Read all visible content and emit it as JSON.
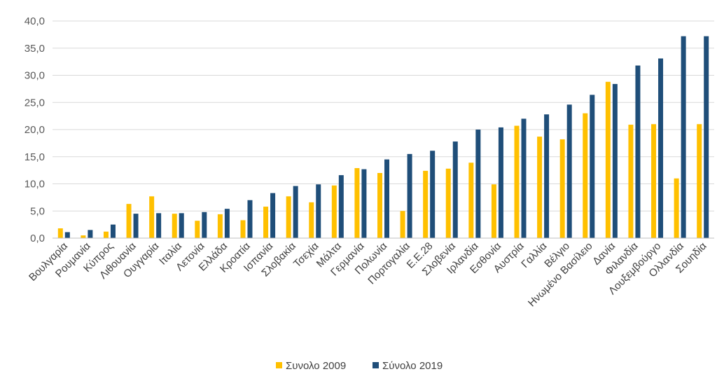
{
  "colors": {
    "series2009": "#FFC000",
    "series2019": "#1F4E79",
    "grid": "#D9D9D9",
    "axis": "#BFBFBF"
  },
  "chart_data": {
    "type": "bar",
    "title": "",
    "xlabel": "",
    "ylabel": "",
    "ylim": [
      0,
      40
    ],
    "yticks": [
      "0,0",
      "5,0",
      "10,0",
      "15,0",
      "20,0",
      "25,0",
      "30,0",
      "35,0",
      "40,0"
    ],
    "grid": true,
    "legend_position": "bottom",
    "categories": [
      "Βουλγαρία",
      "Ρουμανία",
      "Κύπρος",
      "Λιθουανία",
      "Ουγγαρία",
      "Ιταλία",
      "Λετονία",
      "Ελλάδα",
      "Κροατία",
      "Ισπανία",
      "Σλοβακία",
      "Τσεχία",
      "Μάλτα",
      "Γερμανία",
      "Πολωνία",
      "Πορτογαλία",
      "Ε.Ε.28",
      "Σλοβενία",
      "Ιρλανδία",
      "Εσθονία",
      "Αυστρία",
      "Γαλλία",
      "Βέλγιο",
      "Ηνωμένο Βασίλειο",
      "Δανία",
      "Φιλανδία",
      "Λουξεμβούργο",
      "Ολλανδία",
      "Σουηδία"
    ],
    "series": [
      {
        "name": "Συνολο 2009",
        "values": [
          1.8,
          0.5,
          1.2,
          6.3,
          7.7,
          4.5,
          3.2,
          4.4,
          3.3,
          5.8,
          7.7,
          6.6,
          9.7,
          12.9,
          12.0,
          5.0,
          12.4,
          12.8,
          13.9,
          9.9,
          20.7,
          18.7,
          18.2,
          23.0,
          28.8,
          20.9,
          21.0,
          11.0,
          21.0
        ]
      },
      {
        "name": "Σύνολο 2019",
        "values": [
          1.1,
          1.5,
          2.5,
          4.5,
          4.6,
          4.6,
          4.8,
          5.4,
          7.0,
          8.3,
          9.6,
          9.9,
          11.6,
          12.7,
          14.5,
          15.5,
          16.1,
          17.8,
          20.0,
          20.4,
          22.0,
          22.8,
          24.6,
          26.4,
          28.4,
          31.8,
          33.1,
          37.2,
          37.2
        ]
      }
    ]
  }
}
